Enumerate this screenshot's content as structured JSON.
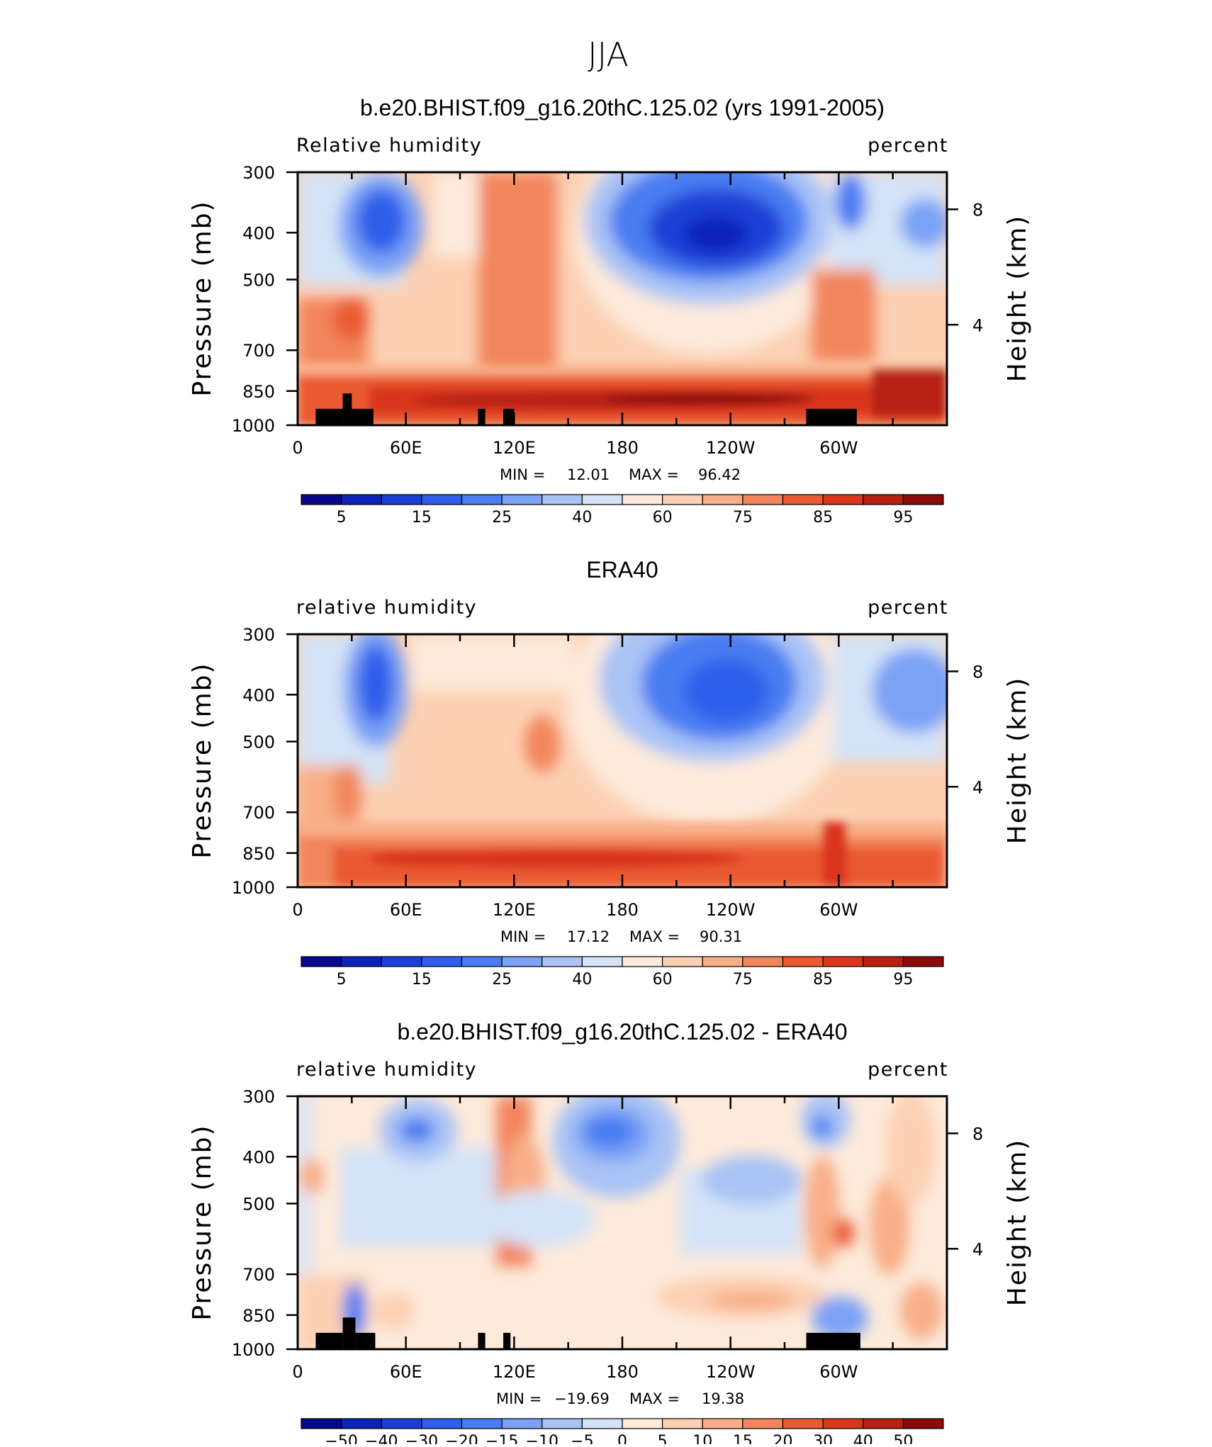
{
  "figure": {
    "title": "JJA"
  },
  "colors": {
    "frame": "#000000",
    "land": "#000000"
  },
  "chart_data": [
    {
      "type": "heatmap",
      "title": "b.e20.BHIST.f09_g16.20thC.125.02 (yrs 1991-2005)",
      "subtitle_left": "Relative humidity",
      "subtitle_right": "percent",
      "ylabel": "Pressure (mb)",
      "ylabel_right": "Height (km)",
      "x_ticks": [
        "0",
        "60E",
        "120E",
        "180",
        "120W",
        "60W"
      ],
      "y_ticks": [
        "300",
        "400",
        "500",
        "700",
        "850",
        "1000"
      ],
      "y_right_ticks": [
        "8",
        "4"
      ],
      "xlim": [
        0,
        360
      ],
      "ylim": [
        1000,
        300
      ],
      "min_label": "MIN =",
      "min_value": "12.01",
      "max_label": "MAX =",
      "max_value": "96.42",
      "colorbar": {
        "levels": [
          "5",
          "15",
          "25",
          "40",
          "60",
          "75",
          "85",
          "95"
        ],
        "colors": [
          "#08088c",
          "#0b23b8",
          "#1b3fd6",
          "#2f5eea",
          "#4a7df2",
          "#7ba2f5",
          "#a9c3f5",
          "#d4e3f7",
          "#fdeadb",
          "#fcd0b3",
          "#f8ae87",
          "#f2855c",
          "#ea5a30",
          "#d9361b",
          "#b82012",
          "#8b0a0a"
        ]
      },
      "land_mask": [
        [
          10,
          25
        ],
        [
          25,
          30
        ],
        [
          30,
          42
        ],
        [
          100,
          104
        ],
        [
          114,
          120
        ],
        [
          282,
          310
        ]
      ]
    },
    {
      "type": "heatmap",
      "title": "ERA40",
      "subtitle_left": "relative humidity",
      "subtitle_right": "percent",
      "ylabel": "Pressure (mb)",
      "ylabel_right": "Height (km)",
      "x_ticks": [
        "0",
        "60E",
        "120E",
        "180",
        "120W",
        "60W"
      ],
      "y_ticks": [
        "300",
        "400",
        "500",
        "700",
        "850",
        "1000"
      ],
      "y_right_ticks": [
        "8",
        "4"
      ],
      "xlim": [
        0,
        360
      ],
      "ylim": [
        1000,
        300
      ],
      "min_label": "MIN =",
      "min_value": "17.12",
      "max_label": "MAX =",
      "max_value": "90.31",
      "colorbar": {
        "levels": [
          "5",
          "15",
          "25",
          "40",
          "60",
          "75",
          "85",
          "95"
        ],
        "colors": [
          "#08088c",
          "#0b23b8",
          "#1b3fd6",
          "#2f5eea",
          "#4a7df2",
          "#7ba2f5",
          "#a9c3f5",
          "#d4e3f7",
          "#fdeadb",
          "#fcd0b3",
          "#f8ae87",
          "#f2855c",
          "#ea5a30",
          "#d9361b",
          "#b82012",
          "#8b0a0a"
        ]
      },
      "land_mask": []
    },
    {
      "type": "heatmap",
      "title": "b.e20.BHIST.f09_g16.20thC.125.02 - ERA40",
      "subtitle_left": "relative humidity",
      "subtitle_right": "percent",
      "ylabel": "Pressure (mb)",
      "ylabel_right": "Height (km)",
      "x_ticks": [
        "0",
        "60E",
        "120E",
        "180",
        "120W",
        "60W"
      ],
      "y_ticks": [
        "300",
        "400",
        "500",
        "700",
        "850",
        "1000"
      ],
      "y_right_ticks": [
        "8",
        "4"
      ],
      "xlim": [
        0,
        360
      ],
      "ylim": [
        1000,
        300
      ],
      "min_label": "MIN =",
      "min_value": "−19.69",
      "max_label": "MAX =",
      "max_value": "19.38",
      "colorbar": {
        "levels": [
          "−50",
          "−40",
          "−30",
          "−20",
          "−15",
          "−10",
          "−5",
          "0",
          "5",
          "10",
          "15",
          "20",
          "30",
          "40",
          "50"
        ],
        "colors": [
          "#08088c",
          "#0b23b8",
          "#1b3fd6",
          "#2f5eea",
          "#4a7df2",
          "#7ba2f5",
          "#a9c3f5",
          "#d4e3f7",
          "#fdeadb",
          "#fcd0b3",
          "#f8ae87",
          "#f2855c",
          "#ea5a30",
          "#d9361b",
          "#b82012",
          "#8b0a0a"
        ]
      },
      "land_mask": [
        [
          10,
          25
        ],
        [
          25,
          32
        ],
        [
          32,
          43
        ],
        [
          100,
          104
        ],
        [
          114,
          118
        ],
        [
          282,
          312
        ]
      ]
    }
  ]
}
